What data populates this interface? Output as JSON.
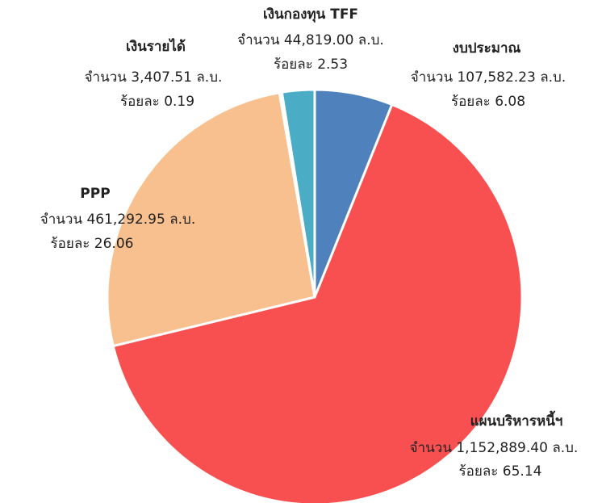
{
  "chart_data": {
    "type": "pie",
    "categories": [
      "งบประมาณ",
      "แผนบริหารหนี้ฯ",
      "PPP",
      "เงินรายได้",
      "เงินกองทุน TFF"
    ],
    "values": [
      107582.23,
      1152889.4,
      461292.95,
      3407.51,
      44819.0
    ],
    "value_labels": [
      "จำนวน 107,582.23 ล.บ.",
      "จำนวน 1,152,889.40 ล.บ.",
      "จำนวน 461,292.95 ล.บ.",
      "จำนวน 3,407.51 ล.บ.",
      "จำนวน 44,819.00 ล.บ."
    ],
    "percentages": [
      6.08,
      65.14,
      26.06,
      0.19,
      2.53
    ],
    "percentage_labels": [
      "ร้อยละ 6.08",
      "ร้อยละ 65.14",
      "ร้อยละ 26.06",
      "ร้อยละ 0.19",
      "ร้อยละ 2.53"
    ],
    "colors": [
      "#4f81bd",
      "#f84f50",
      "#f9c08f",
      "#c8a8f0",
      "#4bacc6"
    ]
  }
}
